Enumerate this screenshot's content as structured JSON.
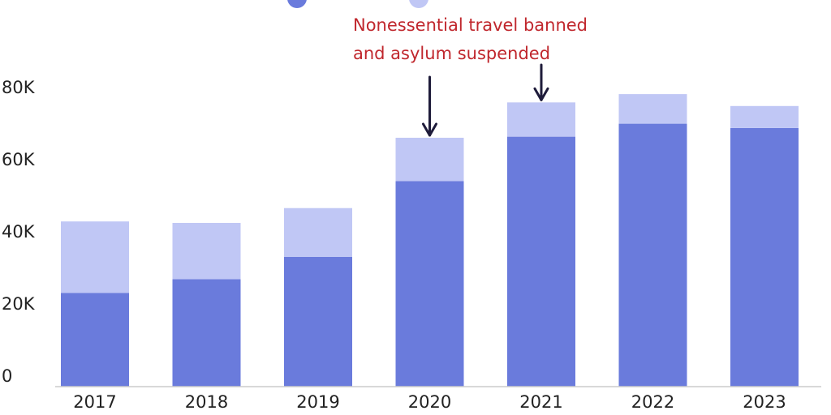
{
  "chart_data": {
    "type": "bar",
    "stacked": true,
    "categories": [
      "2017",
      "2018",
      "2019",
      "2020",
      "2021",
      "2022",
      "2023"
    ],
    "series": [
      {
        "name": "",
        "color": "#6a7bdc",
        "values": [
          26000,
          29800,
          36000,
          57000,
          69300,
          72900,
          71700
        ]
      },
      {
        "name": "",
        "color": "#c0c7f5",
        "values": [
          19800,
          15600,
          13500,
          12000,
          9500,
          8200,
          6100
        ]
      }
    ],
    "y_ticks": [
      0,
      20000,
      40000,
      60000,
      80000
    ],
    "y_tick_labels": [
      "0",
      "20K",
      "40K",
      "60K",
      "80K"
    ],
    "ylim": [
      0,
      85000
    ],
    "grid": false,
    "annotation": {
      "lines": [
        "Nonessential travel banned",
        "and asylum suspended"
      ],
      "color": "#c0272d",
      "arrows_to": [
        "2020",
        "2021"
      ]
    }
  }
}
